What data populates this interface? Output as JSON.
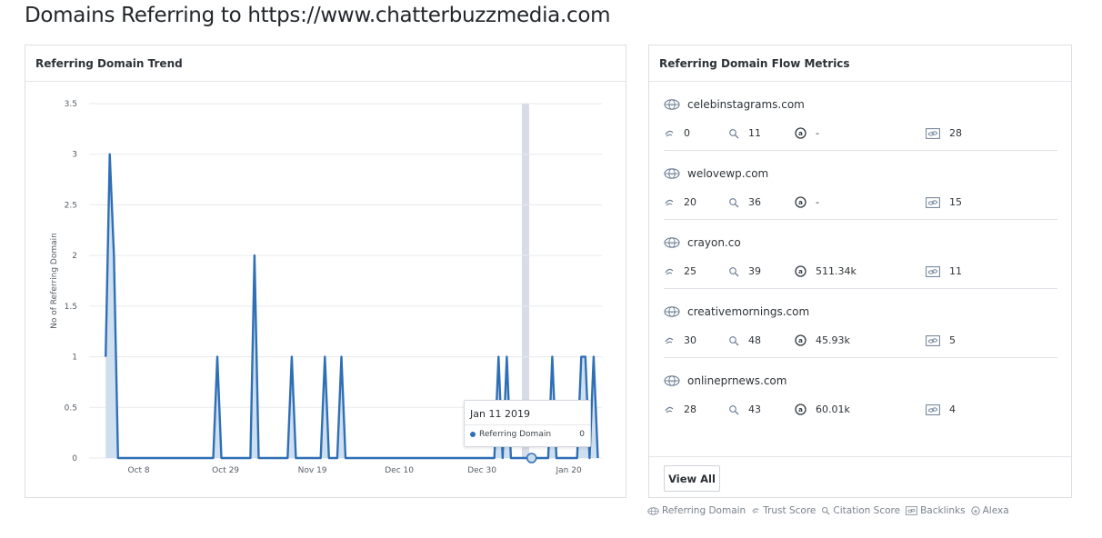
{
  "page": {
    "title": "Domains Referring to https://www.chatterbuzzmedia.com"
  },
  "trend_panel": {
    "title": "Referring Domain Trend"
  },
  "tooltip": {
    "date": "Jan 11 2019",
    "series_label": "Referring Domain",
    "value": "0"
  },
  "chart_data": {
    "type": "area",
    "ylabel": "No of Referring Domain",
    "ylim": [
      0,
      3.5
    ],
    "yticks": [
      "0",
      "0.5",
      "1",
      "1.5",
      "2",
      "2.5",
      "3",
      "3.5"
    ],
    "xticks": [
      "Oct 8",
      "Oct 29",
      "Nov 19",
      "Dec 10",
      "Dec 30",
      "Jan 20"
    ],
    "series": [
      {
        "name": "Referring Domain",
        "color": "#2f6fb5",
        "fill": "#c9dcee",
        "points": [
          [
            "2018-09-30",
            1
          ],
          [
            "2018-10-01",
            3
          ],
          [
            "2018-10-02",
            2
          ],
          [
            "2018-10-03",
            0
          ],
          [
            "2018-10-26",
            0
          ],
          [
            "2018-10-27",
            1
          ],
          [
            "2018-10-28",
            0
          ],
          [
            "2018-11-04",
            0
          ],
          [
            "2018-11-05",
            2
          ],
          [
            "2018-11-06",
            0
          ],
          [
            "2018-11-13",
            0
          ],
          [
            "2018-11-14",
            1
          ],
          [
            "2018-11-15",
            0
          ],
          [
            "2018-11-21",
            0
          ],
          [
            "2018-11-22",
            1
          ],
          [
            "2018-11-23",
            0
          ],
          [
            "2018-11-25",
            0
          ],
          [
            "2018-11-26",
            1
          ],
          [
            "2018-11-27",
            0
          ],
          [
            "2019-01-02",
            0
          ],
          [
            "2019-01-03",
            1
          ],
          [
            "2019-01-04",
            0
          ],
          [
            "2019-01-05",
            1
          ],
          [
            "2019-01-06",
            0
          ],
          [
            "2019-01-15",
            0
          ],
          [
            "2019-01-16",
            1
          ],
          [
            "2019-01-17",
            0
          ],
          [
            "2019-01-22",
            0
          ],
          [
            "2019-01-23",
            1
          ],
          [
            "2019-01-24",
            1
          ],
          [
            "2019-01-25",
            0
          ],
          [
            "2019-01-26",
            1
          ],
          [
            "2019-01-27",
            0
          ]
        ]
      }
    ],
    "highlight": {
      "x": "2019-01-11",
      "value": 0
    }
  },
  "flow_panel": {
    "title": "Referring Domain Flow Metrics",
    "view_all_label": "View All",
    "domains": [
      {
        "name": "celebinstagrams.com",
        "trust": "0",
        "citation": "11",
        "alexa": "-",
        "backlinks": "28"
      },
      {
        "name": "welovewp.com",
        "trust": "20",
        "citation": "36",
        "alexa": "-",
        "backlinks": "15"
      },
      {
        "name": "crayon.co",
        "trust": "25",
        "citation": "39",
        "alexa": "511.34k",
        "backlinks": "11"
      },
      {
        "name": "creativemornings.com",
        "trust": "30",
        "citation": "48",
        "alexa": "45.93k",
        "backlinks": "5"
      },
      {
        "name": "onlineprnews.com",
        "trust": "28",
        "citation": "43",
        "alexa": "60.01k",
        "backlinks": "4"
      }
    ]
  },
  "legend": {
    "referring_domain": "Referring Domain",
    "trust_score": "Trust Score",
    "citation_score": "Citation Score",
    "backlinks": "Backlinks",
    "alexa": "Alexa"
  }
}
